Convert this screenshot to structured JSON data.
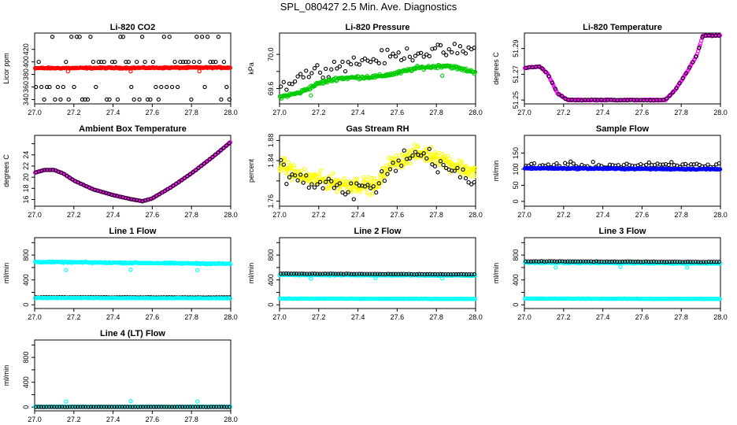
{
  "page": {
    "title": "SPL_080427  2.5 Min. Ave. Diagnostics"
  },
  "colors": {
    "black": "#000000",
    "red": "#ff0000",
    "green": "#00cc00",
    "magenta": "#ff00ff",
    "yellow": "#ffff00",
    "blue": "#0000ff",
    "cyan": "#00ffff"
  },
  "chart_data": [
    {
      "id": "co2",
      "type": "scatter",
      "title": "Li-820 CO2",
      "ylabel": "Licor ppm",
      "xlim": [
        27.0,
        28.0
      ],
      "ylim": [
        333,
        446
      ],
      "xticks": [
        "27.0",
        "27.2",
        "27.4",
        "27.6",
        "27.8",
        "28.0"
      ],
      "yticks": [
        340,
        360,
        380,
        400,
        420
      ],
      "ytick_labels": [
        "340",
        "360",
        "380",
        "400",
        "420"
      ],
      "series": [
        {
          "name": "black-scatter",
          "color": "black",
          "pattern": "levels",
          "levels": [
            440,
            400,
            360,
            340
          ],
          "n": 72
        },
        {
          "name": "red",
          "color": "red",
          "pattern": "band",
          "start": 390,
          "end": 391,
          "noise": 1.5,
          "n": 220,
          "extra": [
            [
              27.17,
              385
            ],
            [
              27.49,
              385
            ],
            [
              27.84,
              385
            ]
          ]
        }
      ]
    },
    {
      "id": "pressure",
      "type": "scatter",
      "title": "Li-820 Pressure",
      "ylabel": "kPa",
      "xlim": [
        27.0,
        28.0
      ],
      "ylim": [
        69.42,
        70.25
      ],
      "xticks": [
        "27.0",
        "27.2",
        "27.4",
        "27.6",
        "27.8",
        "28.0"
      ],
      "yticks": [
        69.6,
        69.8,
        70.0
      ],
      "ytick_labels": [
        "69.6",
        "",
        "70.0"
      ],
      "series": [
        {
          "name": "black-scatter",
          "color": "black",
          "pattern": "trend",
          "trend": [
            [
              27.0,
              69.6
            ],
            [
              27.1,
              69.75
            ],
            [
              27.3,
              69.88
            ],
            [
              27.5,
              69.95
            ],
            [
              27.7,
              70.02
            ],
            [
              28.0,
              70.05
            ]
          ],
          "noise": 0.12,
          "n": 70
        },
        {
          "name": "green",
          "color": "green",
          "pattern": "trend",
          "trend": [
            [
              27.0,
              69.5
            ],
            [
              27.1,
              69.55
            ],
            [
              27.2,
              69.66
            ],
            [
              27.3,
              69.72
            ],
            [
              27.5,
              69.74
            ],
            [
              27.6,
              69.78
            ],
            [
              27.7,
              69.84
            ],
            [
              27.85,
              69.87
            ],
            [
              28.0,
              69.79
            ]
          ],
          "noise": 0.03,
          "n": 240,
          "extra": [
            [
              27.16,
              69.52
            ],
            [
              27.83,
              69.75
            ]
          ]
        }
      ]
    },
    {
      "id": "licor_temp",
      "type": "scatter",
      "title": "Li-820 Temperature",
      "ylabel": "degrees C",
      "xlim": [
        27.0,
        28.0
      ],
      "ylim": [
        51.247,
        51.302
      ],
      "xticks": [
        "27.0",
        "27.2",
        "27.4",
        "27.6",
        "27.8",
        "28.0"
      ],
      "yticks": [
        51.25,
        51.27,
        51.29
      ],
      "ytick_labels": [
        "51.25",
        "51.27",
        "51.29"
      ],
      "series": [
        {
          "name": "magenta",
          "color": "magenta",
          "pattern": "trend",
          "trend": [
            [
              27.0,
              51.275
            ],
            [
              27.08,
              51.276
            ],
            [
              27.12,
              51.27
            ],
            [
              27.17,
              51.255
            ],
            [
              27.22,
              51.25
            ],
            [
              27.72,
              51.25
            ],
            [
              27.77,
              51.258
            ],
            [
              27.83,
              51.272
            ],
            [
              27.88,
              51.285
            ],
            [
              27.91,
              51.3
            ],
            [
              28.0,
              51.3
            ]
          ],
          "noise": 0.0006,
          "n": 240
        },
        {
          "name": "black-scatter",
          "color": "black",
          "pattern": "trend",
          "trend": [
            [
              27.0,
              51.275
            ],
            [
              27.08,
              51.276
            ],
            [
              27.12,
              51.27
            ],
            [
              27.17,
              51.255
            ],
            [
              27.22,
              51.25
            ],
            [
              27.72,
              51.25
            ],
            [
              27.77,
              51.258
            ],
            [
              27.83,
              51.272
            ],
            [
              27.88,
              51.285
            ],
            [
              27.91,
              51.3
            ],
            [
              28.0,
              51.3
            ]
          ],
          "noise": 0.0004,
          "n": 60
        }
      ]
    },
    {
      "id": "box_temp",
      "type": "scatter",
      "title": "Ambient Box Temperature",
      "ylabel": "degrees C",
      "xlim": [
        27.0,
        28.0
      ],
      "ylim": [
        14.8,
        27.5
      ],
      "xticks": [
        "27.0",
        "27.2",
        "27.4",
        "27.6",
        "27.8",
        "28.0"
      ],
      "yticks": [
        16,
        18,
        20,
        22,
        24,
        26
      ],
      "ytick_labels": [
        "16",
        "18",
        "20",
        "22",
        "24",
        ""
      ],
      "series": [
        {
          "name": "magenta",
          "color": "magenta",
          "pattern": "trend",
          "trend": [
            [
              27.0,
              20.8
            ],
            [
              27.05,
              21.3
            ],
            [
              27.1,
              21.3
            ],
            [
              27.15,
              20.6
            ],
            [
              27.2,
              19.4
            ],
            [
              27.3,
              17.8
            ],
            [
              27.4,
              16.8
            ],
            [
              27.5,
              16.0
            ],
            [
              27.55,
              15.7
            ],
            [
              27.6,
              16.2
            ],
            [
              27.7,
              18.3
            ],
            [
              27.8,
              20.7
            ],
            [
              27.9,
              23.4
            ],
            [
              28.0,
              26.3
            ]
          ],
          "noise": 0.05,
          "n": 220
        },
        {
          "name": "black-scatter",
          "color": "black",
          "pattern": "trend",
          "trend": [
            [
              27.0,
              20.8
            ],
            [
              27.05,
              21.3
            ],
            [
              27.1,
              21.3
            ],
            [
              27.15,
              20.6
            ],
            [
              27.2,
              19.4
            ],
            [
              27.3,
              17.8
            ],
            [
              27.4,
              16.8
            ],
            [
              27.5,
              16.0
            ],
            [
              27.55,
              15.7
            ],
            [
              27.6,
              16.2
            ],
            [
              27.7,
              18.3
            ],
            [
              27.8,
              20.7
            ],
            [
              27.9,
              23.4
            ],
            [
              28.0,
              26.3
            ]
          ],
          "noise": 0.03,
          "n": 70
        }
      ]
    },
    {
      "id": "rh",
      "type": "scatter",
      "title": "Gas Stream RH",
      "ylabel": "percent",
      "xlim": [
        27.0,
        28.0
      ],
      "ylim": [
        1.75,
        1.89
      ],
      "xticks": [
        "27.0",
        "27.2",
        "27.4",
        "27.6",
        "27.8",
        "28.0"
      ],
      "yticks": [
        1.76,
        1.8,
        1.84,
        1.88
      ],
      "ytick_labels": [
        "1.76",
        "",
        "1.84",
        "1.88"
      ],
      "series": [
        {
          "name": "yellow",
          "color": "yellow",
          "pattern": "trend",
          "trend": [
            [
              27.0,
              1.835
            ],
            [
              27.1,
              1.81
            ],
            [
              27.3,
              1.795
            ],
            [
              27.5,
              1.79
            ],
            [
              27.55,
              1.83
            ],
            [
              27.7,
              1.855
            ],
            [
              27.8,
              1.85
            ],
            [
              27.9,
              1.83
            ],
            [
              28.0,
              1.815
            ]
          ],
          "noise": 0.022,
          "n": 360
        },
        {
          "name": "black-scatter",
          "color": "black",
          "pattern": "trend",
          "trend": [
            [
              27.0,
              1.83
            ],
            [
              27.1,
              1.8
            ],
            [
              27.3,
              1.785
            ],
            [
              27.5,
              1.785
            ],
            [
              27.55,
              1.825
            ],
            [
              27.7,
              1.855
            ],
            [
              27.8,
              1.84
            ],
            [
              27.9,
              1.815
            ],
            [
              28.0,
              1.79
            ]
          ],
          "noise": 0.03,
          "n": 70
        }
      ]
    },
    {
      "id": "sample_flow",
      "type": "scatter",
      "title": "Sample Flow",
      "ylabel": "ml/min",
      "xlim": [
        27.0,
        28.0
      ],
      "ylim": [
        -15,
        205
      ],
      "xticks": [
        "27.0",
        "27.2",
        "27.4",
        "27.6",
        "27.8",
        "28.0"
      ],
      "yticks": [
        0,
        50,
        100,
        150
      ],
      "ytick_labels": [
        "0",
        "50",
        "100",
        "150"
      ],
      "series": [
        {
          "name": "black-scatter",
          "color": "black",
          "pattern": "trend",
          "trend": [
            [
              27.0,
              112
            ],
            [
              28.0,
              112
            ]
          ],
          "noise": 14,
          "n": 70
        },
        {
          "name": "blue",
          "color": "blue",
          "pattern": "band",
          "start": 103,
          "end": 100,
          "noise": 3,
          "n": 240
        }
      ]
    },
    {
      "id": "line1",
      "type": "scatter",
      "title": "Line 1 Flow",
      "ylabel": "ml/min",
      "xlim": [
        27.0,
        28.0
      ],
      "ylim": [
        -60,
        1080
      ],
      "xticks": [
        "27.0",
        "27.2",
        "27.4",
        "27.6",
        "27.8",
        "28.0"
      ],
      "yticks": [
        0,
        200,
        400,
        600,
        800,
        1000
      ],
      "ytick_labels": [
        "0",
        "",
        "400",
        "",
        "800",
        ""
      ],
      "series": [
        {
          "name": "cyan-top",
          "color": "cyan",
          "pattern": "band",
          "start": 690,
          "end": 660,
          "noise": 14,
          "n": 240,
          "extra": [
            [
              27.16,
              560
            ],
            [
              27.49,
              565
            ],
            [
              27.83,
              555
            ]
          ]
        },
        {
          "name": "black-bottom",
          "color": "black",
          "pattern": "band",
          "start": 120,
          "end": 120,
          "noise": 3,
          "n": 75
        },
        {
          "name": "cyan-bottom",
          "color": "cyan",
          "pattern": "band",
          "start": 110,
          "end": 105,
          "noise": 4,
          "n": 150
        }
      ]
    },
    {
      "id": "line2",
      "type": "scatter",
      "title": "Line 2 Flow",
      "ylabel": "ml/min",
      "xlim": [
        27.0,
        28.0
      ],
      "ylim": [
        -60,
        1080
      ],
      "xticks": [
        "27.0",
        "27.2",
        "27.4",
        "27.6",
        "27.8",
        "28.0"
      ],
      "yticks": [
        0,
        200,
        400,
        600,
        800,
        1000
      ],
      "ytick_labels": [
        "0",
        "",
        "400",
        "",
        "800",
        ""
      ],
      "series": [
        {
          "name": "cyan-top",
          "color": "cyan",
          "pattern": "band",
          "start": 480,
          "end": 470,
          "noise": 10,
          "n": 200,
          "extra": [
            [
              27.16,
              420
            ],
            [
              27.49,
              430
            ],
            [
              27.83,
              425
            ]
          ]
        },
        {
          "name": "black-top",
          "color": "black",
          "pattern": "band",
          "start": 500,
          "end": 490,
          "noise": 4,
          "n": 75
        },
        {
          "name": "cyan-bottom",
          "color": "cyan",
          "pattern": "band",
          "start": 100,
          "end": 95,
          "noise": 4,
          "n": 180
        }
      ]
    },
    {
      "id": "line3",
      "type": "scatter",
      "title": "Line 3 Flow",
      "ylabel": "ml/min",
      "xlim": [
        27.0,
        28.0
      ],
      "ylim": [
        -60,
        1080
      ],
      "xticks": [
        "27.0",
        "27.2",
        "27.4",
        "27.6",
        "27.8",
        "28.0"
      ],
      "yticks": [
        0,
        200,
        400,
        600,
        800,
        1000
      ],
      "ytick_labels": [
        "0",
        "",
        "400",
        "",
        "800",
        ""
      ],
      "series": [
        {
          "name": "cyan-top",
          "color": "cyan",
          "pattern": "band",
          "start": 680,
          "end": 665,
          "noise": 10,
          "n": 200,
          "extra": [
            [
              27.16,
              600
            ],
            [
              27.49,
              610
            ],
            [
              27.83,
              600
            ]
          ]
        },
        {
          "name": "black-top",
          "color": "black",
          "pattern": "band",
          "start": 700,
          "end": 690,
          "noise": 5,
          "n": 75
        },
        {
          "name": "cyan-bottom",
          "color": "cyan",
          "pattern": "band",
          "start": 100,
          "end": 95,
          "noise": 4,
          "n": 180
        }
      ]
    },
    {
      "id": "line4",
      "type": "scatter",
      "title": "Line 4 (LT) Flow",
      "ylabel": "ml/min",
      "xlim": [
        27.0,
        28.0
      ],
      "ylim": [
        -60,
        1080
      ],
      "xticks": [
        "27.0",
        "27.2",
        "27.4",
        "27.6",
        "27.8",
        "28.0"
      ],
      "yticks": [
        0,
        200,
        400,
        600,
        800,
        1000
      ],
      "ytick_labels": [
        "0",
        "",
        "400",
        "",
        "800",
        ""
      ],
      "series": [
        {
          "name": "cyan-base",
          "color": "cyan",
          "pattern": "band",
          "start": 5,
          "end": 5,
          "noise": 2,
          "n": 200,
          "extra": [
            [
              27.16,
              90
            ],
            [
              27.49,
              95
            ],
            [
              27.83,
              90
            ]
          ]
        },
        {
          "name": "black-base",
          "color": "black",
          "pattern": "band",
          "start": 3,
          "end": 3,
          "noise": 1,
          "n": 75
        }
      ]
    }
  ]
}
